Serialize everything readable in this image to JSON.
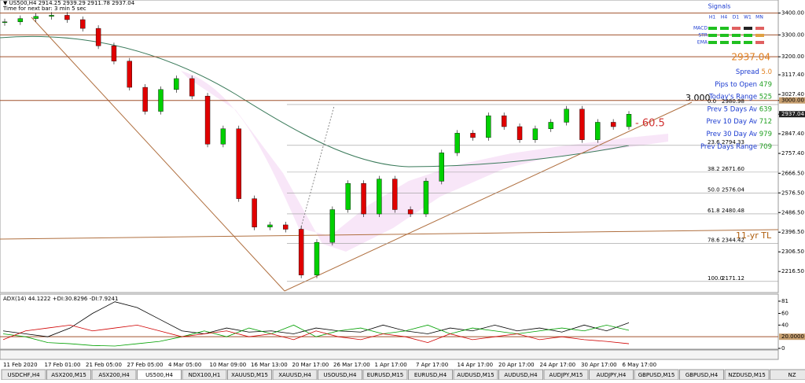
{
  "header": {
    "symbol": "▼ US500,H4 2914.25 2939.29 2911.78 2937.04",
    "timer": "Time for next bar: 3 min 5 sec"
  },
  "signals": {
    "title": "Signals",
    "timeframes": [
      "H1",
      "H4",
      "D1",
      "W1",
      "MN"
    ],
    "rows": [
      "MACD",
      "STR",
      "EMA"
    ]
  },
  "info": {
    "price": "2937.04",
    "lines": [
      {
        "label": "Spread",
        "value": "5.0"
      },
      {
        "label": "Pips to Open",
        "value": "479"
      },
      {
        "label": "Today's Range",
        "value": "525"
      },
      {
        "label": "Prev 5 Days Av",
        "value": "639"
      },
      {
        "label": "Prev 10 Day Av",
        "value": "712"
      },
      {
        "label": "Prev 30 Day Av",
        "value": "979"
      },
      {
        "label": "Prev Days Range",
        "value": "709"
      }
    ]
  },
  "annotations": {
    "level": "3.000",
    "distance": "- 60.5",
    "trendline": "11-yr TL"
  },
  "price_axis": {
    "ylim": [
      2120,
      3460
    ],
    "ticks": [
      {
        "value": 3400,
        "label": "3400.00"
      },
      {
        "value": 3300,
        "label": "3300.00"
      },
      {
        "value": 3200,
        "label": "3200.00"
      },
      {
        "value": 3117.4,
        "label": "3117.40"
      },
      {
        "value": 3027.4,
        "label": "3027.40"
      },
      {
        "value": 3000,
        "label": "3000.00"
      },
      {
        "value": 2937.04,
        "label": "2937.04"
      },
      {
        "value": 2847.4,
        "label": "2847.40"
      },
      {
        "value": 2757.4,
        "label": "2757.40"
      },
      {
        "value": 2666.5,
        "label": "2666.50"
      },
      {
        "value": 2576.5,
        "label": "2576.50"
      },
      {
        "value": 2486.5,
        "label": "2486.50"
      },
      {
        "value": 2396.5,
        "label": "2396.50"
      },
      {
        "value": 2306.5,
        "label": "2306.50"
      },
      {
        "value": 2216.5,
        "label": "2216.50"
      }
    ],
    "levels": [
      3400,
      3300,
      3200,
      3000
    ]
  },
  "fib": [
    {
      "ratio": "0.0",
      "value": 2980.98,
      "label": "2980.98"
    },
    {
      "ratio": "23.6",
      "value": 2794.33,
      "label": "2794.33"
    },
    {
      "ratio": "38.2",
      "value": 2671.6,
      "label": "2671.60"
    },
    {
      "ratio": "50.0",
      "value": 2576.04,
      "label": "2576.04"
    },
    {
      "ratio": "61.8",
      "value": 2480.48,
      "label": "2480.48"
    },
    {
      "ratio": "78.6",
      "value": 2344.42,
      "label": "2344.42"
    },
    {
      "ratio": "100.0",
      "value": 2171.12,
      "label": "2171.12"
    }
  ],
  "price": {
    "values": [
      3360,
      3375,
      3385,
      3390,
      3370,
      3330,
      3250,
      3180,
      3060,
      2950,
      3050,
      3100,
      3020,
      2800,
      2870,
      2550,
      2420,
      2430,
      2410,
      2200,
      2350,
      2500,
      2620,
      2480,
      2640,
      2500,
      2480,
      2630,
      2760,
      2850,
      2830,
      2930,
      2880,
      2820,
      2870,
      2900,
      2960,
      2820,
      2900,
      2880,
      2937
    ]
  },
  "adx": {
    "label": "ADX(14) 44.1222 +DI:30.8296 -DI:7.9241",
    "ylim": [
      0,
      85
    ],
    "ticks": [
      {
        "value": 81,
        "label": "81"
      },
      {
        "value": 60,
        "label": "60"
      },
      {
        "value": 40,
        "label": "40"
      },
      {
        "value": 20,
        "label": "20.0000"
      },
      {
        "value": 0,
        "label": "0"
      }
    ],
    "series": [
      {
        "name": "ADX",
        "color": "#000000",
        "values": [
          30,
          25,
          20,
          35,
          60,
          80,
          70,
          50,
          30,
          25,
          35,
          28,
          30,
          25,
          35,
          30,
          28,
          40,
          30,
          25,
          35,
          30,
          40,
          30,
          35,
          28,
          40,
          30,
          44
        ]
      },
      {
        "name": "+DI",
        "color": "#00a000",
        "values": [
          25,
          20,
          10,
          8,
          5,
          4,
          8,
          12,
          20,
          30,
          20,
          35,
          25,
          40,
          20,
          30,
          35,
          25,
          30,
          40,
          25,
          35,
          30,
          25,
          30,
          35,
          30,
          40,
          31
        ]
      },
      {
        "name": "-DI",
        "color": "#d00000",
        "values": [
          15,
          30,
          35,
          40,
          30,
          35,
          40,
          30,
          20,
          25,
          30,
          20,
          25,
          15,
          30,
          20,
          15,
          25,
          20,
          10,
          25,
          15,
          20,
          25,
          15,
          20,
          15,
          12,
          8
        ]
      }
    ]
  },
  "x_labels": [
    "11 Feb 2020",
    "17 Feb 01:00",
    "21 Feb 05:00",
    "27 Feb 05:00",
    "4 Mar 05:00",
    "10 Mar 09:00",
    "16 Mar 13:00",
    "20 Mar 17:00",
    "26 Mar 17:00",
    "1 Apr 17:00",
    "7 Apr 17:00",
    "14 Apr 17:00",
    "20 Apr 17:00",
    "24 Apr 17:00",
    "30 Apr 17:00",
    "6 May 17:00"
  ],
  "tabs": [
    "USDCHF,H4",
    "ASX200,M15",
    "ASX200,H4",
    "US500,H4",
    "NDX100,H1",
    "XAUUSD,M15",
    "XAUUSD,H4",
    "USOUSD,H4",
    "EURUSD,M15",
    "EURUSD,H4",
    "AUDUSD,M15",
    "AUDUSD,H4",
    "AUDJPY,M15",
    "AUDJPY,H4",
    "GBPUSD,M15",
    "GBPUSD,H4",
    "NZDUSD,M15",
    "NZ"
  ]
}
